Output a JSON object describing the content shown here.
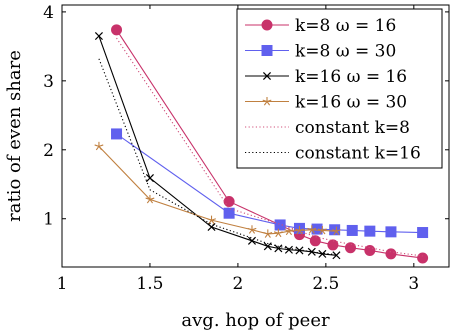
{
  "chart_data": {
    "type": "line",
    "xlabel": "avg. hop of peer",
    "ylabel": "ratio of even share",
    "xlim": [
      1,
      3.2
    ],
    "ylim": [
      0.3,
      4.1
    ],
    "xticks": [
      1,
      1.5,
      2,
      2.5,
      3
    ],
    "xtick_labels": [
      "1",
      "1.5",
      "2",
      "2.5",
      "3"
    ],
    "yticks": [
      1,
      2,
      3,
      4
    ],
    "ytick_labels": [
      "1",
      "2",
      "3",
      "4"
    ],
    "grid": false,
    "legend_position": "top-right",
    "series": [
      {
        "name": "k=8  ω = 16",
        "color": "#c8326a",
        "marker": "circle",
        "dash": "solid",
        "x": [
          1.31,
          1.95,
          2.24,
          2.35,
          2.44,
          2.54,
          2.64,
          2.75,
          2.87,
          3.05
        ],
        "y": [
          3.74,
          1.25,
          0.91,
          0.77,
          0.68,
          0.62,
          0.58,
          0.54,
          0.49,
          0.43
        ]
      },
      {
        "name": "k=8  ω = 30",
        "color": "#6060ee",
        "marker": "square",
        "dash": "solid",
        "x": [
          1.31,
          1.95,
          2.24,
          2.35,
          2.45,
          2.55,
          2.65,
          2.75,
          2.87,
          3.05
        ],
        "y": [
          2.23,
          1.08,
          0.91,
          0.86,
          0.85,
          0.84,
          0.83,
          0.82,
          0.81,
          0.8
        ]
      },
      {
        "name": "k=16  ω = 16",
        "color": "#000000",
        "marker": "cross",
        "dash": "solid",
        "x": [
          1.21,
          1.5,
          1.85,
          2.08,
          2.17,
          2.23,
          2.29,
          2.35,
          2.42,
          2.48,
          2.56
        ],
        "y": [
          3.65,
          1.59,
          0.88,
          0.68,
          0.6,
          0.57,
          0.55,
          0.54,
          0.52,
          0.49,
          0.47
        ]
      },
      {
        "name": "k=16  ω = 30",
        "color": "#c08040",
        "marker": "star",
        "dash": "solid",
        "x": [
          1.21,
          1.5,
          1.85,
          2.08,
          2.17,
          2.23,
          2.29,
          2.35,
          2.42,
          2.48,
          2.56
        ],
        "y": [
          2.05,
          1.28,
          0.98,
          0.84,
          0.78,
          0.79,
          0.82,
          0.83,
          0.84,
          0.83,
          0.82
        ]
      },
      {
        "name": "constant k=8",
        "color": "#d0507a",
        "marker": "none",
        "dash": "dotted",
        "x": [
          1.31,
          1.95,
          2.24,
          2.35,
          2.44,
          2.54,
          2.64,
          2.75,
          2.87,
          3.05
        ],
        "y": [
          3.62,
          1.15,
          0.92,
          0.82,
          0.74,
          0.68,
          0.63,
          0.58,
          0.52,
          0.46
        ]
      },
      {
        "name": "constant k=16",
        "color": "#000000",
        "marker": "none",
        "dash": "dotted",
        "x": [
          1.21,
          1.5,
          1.85,
          2.08,
          2.17,
          2.23,
          2.29,
          2.35,
          2.42,
          2.48,
          2.56
        ],
        "y": [
          3.32,
          1.42,
          0.92,
          0.72,
          0.64,
          0.6,
          0.57,
          0.55,
          0.52,
          0.5,
          0.48
        ]
      }
    ]
  }
}
